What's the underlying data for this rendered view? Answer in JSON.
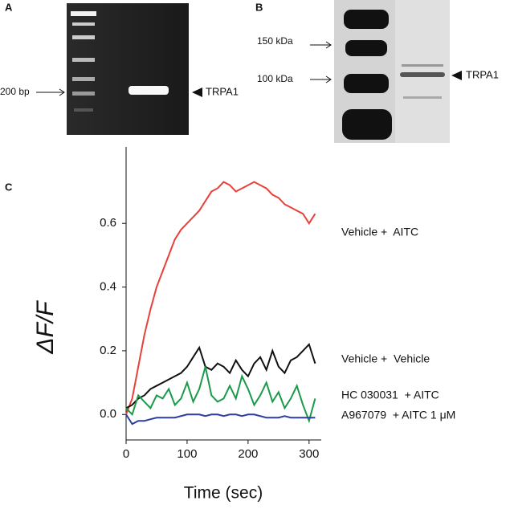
{
  "panels": {
    "a": {
      "label": "A",
      "marker": "200 bp",
      "band": "TRPA1"
    },
    "b": {
      "label": "B",
      "markers": [
        "150 kDa",
        "100 kDa"
      ],
      "band": "TRPA1"
    },
    "c": {
      "label": "C"
    }
  },
  "chart_data": {
    "type": "line",
    "xlabel": "Time (sec)",
    "ylabel": "ΔF/F",
    "x": [
      0,
      10,
      20,
      30,
      40,
      50,
      60,
      70,
      80,
      90,
      100,
      110,
      120,
      130,
      140,
      150,
      160,
      170,
      180,
      190,
      200,
      210,
      220,
      230,
      240,
      250,
      260,
      270,
      280,
      290,
      300,
      310
    ],
    "series": [
      {
        "name": "Vehicle +  AITC",
        "color": "#e8403a",
        "values": [
          0,
          0.05,
          0.15,
          0.25,
          0.33,
          0.4,
          0.45,
          0.5,
          0.55,
          0.58,
          0.6,
          0.62,
          0.64,
          0.67,
          0.7,
          0.71,
          0.73,
          0.72,
          0.7,
          0.71,
          0.72,
          0.73,
          0.72,
          0.71,
          0.69,
          0.68,
          0.66,
          0.65,
          0.64,
          0.63,
          0.6,
          0.63
        ]
      },
      {
        "name": "Vehicle +  Vehicle",
        "color": "#111111",
        "values": [
          0.02,
          0.03,
          0.05,
          0.06,
          0.08,
          0.09,
          0.1,
          0.11,
          0.12,
          0.13,
          0.15,
          0.18,
          0.21,
          0.15,
          0.14,
          0.16,
          0.15,
          0.13,
          0.17,
          0.14,
          0.12,
          0.16,
          0.18,
          0.14,
          0.2,
          0.15,
          0.13,
          0.17,
          0.18,
          0.2,
          0.22,
          0.16
        ]
      },
      {
        "name": "HC 030031  + AITC",
        "color": "#1a9a4a",
        "values": [
          0.02,
          0.0,
          0.06,
          0.04,
          0.02,
          0.06,
          0.05,
          0.08,
          0.03,
          0.05,
          0.1,
          0.04,
          0.08,
          0.15,
          0.06,
          0.04,
          0.05,
          0.09,
          0.05,
          0.12,
          0.08,
          0.03,
          0.06,
          0.1,
          0.04,
          0.07,
          0.02,
          0.05,
          0.09,
          0.03,
          -0.02,
          0.05
        ]
      },
      {
        "name": "A967079  + AITC 1 μM",
        "color": "#2b3fa0",
        "values": [
          0.0,
          -0.03,
          -0.02,
          -0.02,
          -0.015,
          -0.01,
          -0.01,
          -0.01,
          -0.01,
          -0.005,
          0,
          0,
          0,
          -0.005,
          0,
          0,
          -0.005,
          0,
          0,
          -0.005,
          0,
          0,
          -0.005,
          -0.01,
          -0.01,
          -0.01,
          -0.005,
          -0.01,
          -0.01,
          -0.01,
          -0.01,
          -0.01
        ]
      }
    ],
    "xlim": [
      0,
      320
    ],
    "xticks": [
      0,
      100,
      200,
      300
    ],
    "ylim": [
      -0.08,
      0.84
    ],
    "yticks": [
      {
        "value": 0,
        "label": "0.0"
      },
      0.2,
      0.4,
      0.6
    ]
  }
}
